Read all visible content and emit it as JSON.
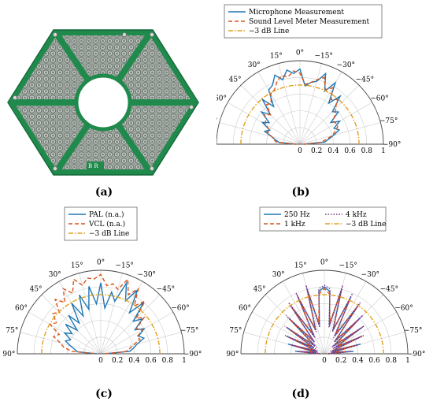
{
  "captions": [
    "(a)",
    "(b)",
    "(c)",
    "(d)"
  ],
  "colors": {
    "blue": "#1f77b4",
    "orange_red": "#d9541a",
    "gold": "#e0a020",
    "purple": "#7e2f8e",
    "pcb_green": "#1f8a4c",
    "grid": "#cccccc"
  },
  "pcb": {
    "silkscreen": "B  R"
  },
  "chart_data": [
    {
      "panel": "b",
      "type": "polar",
      "angle_ticks": [
        "90°",
        "75°",
        "60°",
        "45°",
        "30°",
        "15°",
        "0°",
        "−15°",
        "−30°",
        "−45°",
        "−60°",
        "−75°",
        "−90°"
      ],
      "radial_ticks": [
        "0",
        "0.2",
        "0.4",
        "0.6",
        "0.8",
        "1"
      ],
      "rlim": [
        0,
        1
      ],
      "theta_range_deg": [
        -90,
        90
      ],
      "legend_placement": "top",
      "series": [
        {
          "name": "Microphone Measurement",
          "style": "solid",
          "color": "#1f77b4",
          "theta": [
            -90,
            -85,
            -80,
            -75,
            -70,
            -65,
            -60,
            -55,
            -50,
            -45,
            -40,
            -35,
            -30,
            -25,
            -20,
            -15,
            -10,
            -5,
            0,
            5,
            10,
            15,
            20,
            25,
            30,
            35,
            40,
            45,
            50,
            55,
            60,
            65,
            70,
            75,
            80,
            85,
            90
          ],
          "r": [
            0.05,
            0.3,
            0.35,
            0.42,
            0.5,
            0.45,
            0.55,
            0.45,
            0.6,
            0.55,
            0.75,
            0.6,
            0.85,
            0.7,
            0.9,
            0.78,
            0.75,
            0.7,
            0.9,
            0.85,
            0.9,
            0.8,
            0.88,
            0.78,
            0.75,
            0.55,
            0.7,
            0.5,
            0.6,
            0.45,
            0.52,
            0.4,
            0.45,
            0.35,
            0.3,
            0.25,
            0.05
          ]
        },
        {
          "name": "Sound Level Meter Measurement",
          "style": "dashed",
          "color": "#d9541a",
          "theta": [
            -90,
            -85,
            -80,
            -75,
            -70,
            -65,
            -60,
            -55,
            -50,
            -45,
            -40,
            -35,
            -30,
            -25,
            -20,
            -15,
            -10,
            -5,
            0,
            5,
            10,
            15,
            20,
            25,
            30,
            35,
            40,
            45,
            50,
            55,
            60,
            65,
            70,
            75,
            80,
            85,
            90
          ],
          "r": [
            0.05,
            0.25,
            0.32,
            0.4,
            0.45,
            0.5,
            0.5,
            0.48,
            0.55,
            0.6,
            0.7,
            0.65,
            0.78,
            0.72,
            0.85,
            0.8,
            0.75,
            0.72,
            0.85,
            0.88,
            0.82,
            0.85,
            0.8,
            0.72,
            0.7,
            0.6,
            0.62,
            0.5,
            0.55,
            0.5,
            0.48,
            0.4,
            0.42,
            0.35,
            0.32,
            0.28,
            0.05
          ]
        },
        {
          "name": "−3 dB Line",
          "style": "dashdot",
          "color": "#e0a020",
          "theta": [
            -90,
            90
          ],
          "r": [
            0.708,
            0.708
          ],
          "constant": true
        }
      ]
    },
    {
      "panel": "c",
      "type": "polar",
      "angle_ticks": [
        "90°",
        "75°",
        "60°",
        "45°",
        "30°",
        "15°",
        "0°",
        "−15°",
        "−30°",
        "−45°",
        "−60°",
        "−75°",
        "−90°"
      ],
      "radial_ticks": [
        "0",
        "0.2",
        "0.4",
        "0.6",
        "0.8",
        "1"
      ],
      "rlim": [
        0,
        1
      ],
      "theta_range_deg": [
        -90,
        90
      ],
      "legend_placement": "top",
      "series": [
        {
          "name": "PAL (n.a.)",
          "style": "solid",
          "color": "#1f77b4",
          "theta": [
            -90,
            -85,
            -80,
            -75,
            -70,
            -65,
            -60,
            -55,
            -50,
            -45,
            -40,
            -35,
            -30,
            -25,
            -20,
            -15,
            -10,
            -5,
            0,
            5,
            10,
            15,
            20,
            25,
            30,
            35,
            40,
            45,
            50,
            55,
            60,
            65,
            70,
            75,
            80,
            85,
            90
          ],
          "r": [
            0.05,
            0.35,
            0.4,
            0.45,
            0.55,
            0.5,
            0.6,
            0.5,
            0.65,
            0.55,
            0.8,
            0.6,
            0.88,
            0.7,
            0.9,
            0.65,
            0.75,
            0.55,
            0.85,
            0.6,
            0.82,
            0.55,
            0.75,
            0.5,
            0.7,
            0.45,
            0.6,
            0.4,
            0.55,
            0.42,
            0.5,
            0.4,
            0.45,
            0.38,
            0.32,
            0.28,
            0.05
          ]
        },
        {
          "name": "VCL (n.a.)",
          "style": "dashed",
          "color": "#d9541a",
          "theta": [
            -90,
            -85,
            -80,
            -75,
            -70,
            -65,
            -60,
            -55,
            -50,
            -45,
            -40,
            -35,
            -30,
            -25,
            -20,
            -15,
            -10,
            -5,
            0,
            5,
            10,
            15,
            20,
            25,
            30,
            35,
            40,
            45,
            50,
            55,
            60,
            65,
            70,
            75,
            80,
            85,
            90
          ],
          "r": [
            0.05,
            0.3,
            0.35,
            0.4,
            0.5,
            0.48,
            0.58,
            0.52,
            0.68,
            0.6,
            0.82,
            0.7,
            0.9,
            0.78,
            0.95,
            0.8,
            0.85,
            0.82,
            0.95,
            0.9,
            0.92,
            0.85,
            0.95,
            0.8,
            0.9,
            0.75,
            0.85,
            0.7,
            0.75,
            0.65,
            0.7,
            0.55,
            0.6,
            0.5,
            0.45,
            0.35,
            0.05
          ]
        },
        {
          "name": "−3 dB Line",
          "style": "dashdot",
          "color": "#e0a020",
          "theta": [
            -90,
            90
          ],
          "r": [
            0.708,
            0.708
          ],
          "constant": true
        }
      ]
    },
    {
      "panel": "d",
      "type": "polar",
      "angle_ticks": [
        "90°",
        "75°",
        "60°",
        "45°",
        "30°",
        "15°",
        "0°",
        "−15°",
        "−30°",
        "−45°",
        "−60°",
        "−75°",
        "−90°"
      ],
      "radial_ticks": [
        "0",
        "0.2",
        "0.4",
        "0.6",
        "0.8",
        "1"
      ],
      "rlim": [
        0,
        1
      ],
      "theta_range_deg": [
        -90,
        90
      ],
      "legend_placement": "top",
      "series": [
        {
          "name": "250 Hz",
          "style": "solid",
          "color": "#1f77b4",
          "theta": [
            -90,
            -85,
            -80,
            -75,
            -70,
            -65,
            -60,
            -55,
            -50,
            -45,
            -40,
            -35,
            -30,
            -25,
            -20,
            -15,
            -10,
            -5,
            0,
            5,
            10,
            15,
            20,
            25,
            30,
            35,
            40,
            45,
            50,
            55,
            60,
            65,
            70,
            75,
            80,
            85,
            90
          ],
          "r": [
            0.05,
            0.35,
            0.1,
            0.45,
            0.1,
            0.5,
            0.15,
            0.55,
            0.15,
            0.6,
            0.2,
            0.7,
            0.25,
            0.75,
            0.3,
            0.8,
            0.35,
            0.75,
            0.8,
            0.75,
            0.35,
            0.8,
            0.3,
            0.75,
            0.25,
            0.7,
            0.2,
            0.6,
            0.15,
            0.55,
            0.15,
            0.5,
            0.1,
            0.45,
            0.1,
            0.35,
            0.05
          ]
        },
        {
          "name": "1 kHz",
          "style": "dashed",
          "color": "#d9541a",
          "theta": [
            -90,
            -85,
            -80,
            -75,
            -70,
            -65,
            -60,
            -55,
            -50,
            -45,
            -40,
            -35,
            -30,
            -25,
            -20,
            -15,
            -10,
            -5,
            0,
            5,
            10,
            15,
            20,
            25,
            30,
            35,
            40,
            45,
            50,
            55,
            60,
            65,
            70,
            75,
            80,
            85,
            90
          ],
          "r": [
            0.05,
            0.3,
            0.12,
            0.4,
            0.12,
            0.48,
            0.18,
            0.5,
            0.18,
            0.58,
            0.22,
            0.68,
            0.28,
            0.72,
            0.32,
            0.78,
            0.38,
            0.72,
            0.78,
            0.72,
            0.38,
            0.78,
            0.32,
            0.72,
            0.28,
            0.68,
            0.22,
            0.58,
            0.18,
            0.5,
            0.18,
            0.48,
            0.12,
            0.4,
            0.12,
            0.3,
            0.05
          ]
        },
        {
          "name": "4 kHz",
          "style": "dotted",
          "color": "#7e2f8e",
          "theta": [
            -90,
            -85,
            -80,
            -75,
            -70,
            -65,
            -60,
            -55,
            -50,
            -45,
            -40,
            -35,
            -30,
            -25,
            -20,
            -15,
            -10,
            -5,
            0,
            5,
            10,
            15,
            20,
            25,
            30,
            35,
            40,
            45,
            50,
            55,
            60,
            65,
            70,
            75,
            80,
            85,
            90
          ],
          "r": [
            0.05,
            0.32,
            0.08,
            0.42,
            0.08,
            0.52,
            0.12,
            0.58,
            0.12,
            0.65,
            0.18,
            0.75,
            0.22,
            0.8,
            0.28,
            0.85,
            0.32,
            0.78,
            0.82,
            0.78,
            0.32,
            0.85,
            0.28,
            0.8,
            0.22,
            0.75,
            0.18,
            0.65,
            0.12,
            0.58,
            0.12,
            0.52,
            0.08,
            0.42,
            0.08,
            0.32,
            0.05
          ]
        },
        {
          "name": "−3 dB Line",
          "style": "dashdot",
          "color": "#e0a020",
          "theta": [
            -90,
            90
          ],
          "r": [
            0.708,
            0.708
          ],
          "constant": true
        }
      ]
    }
  ]
}
